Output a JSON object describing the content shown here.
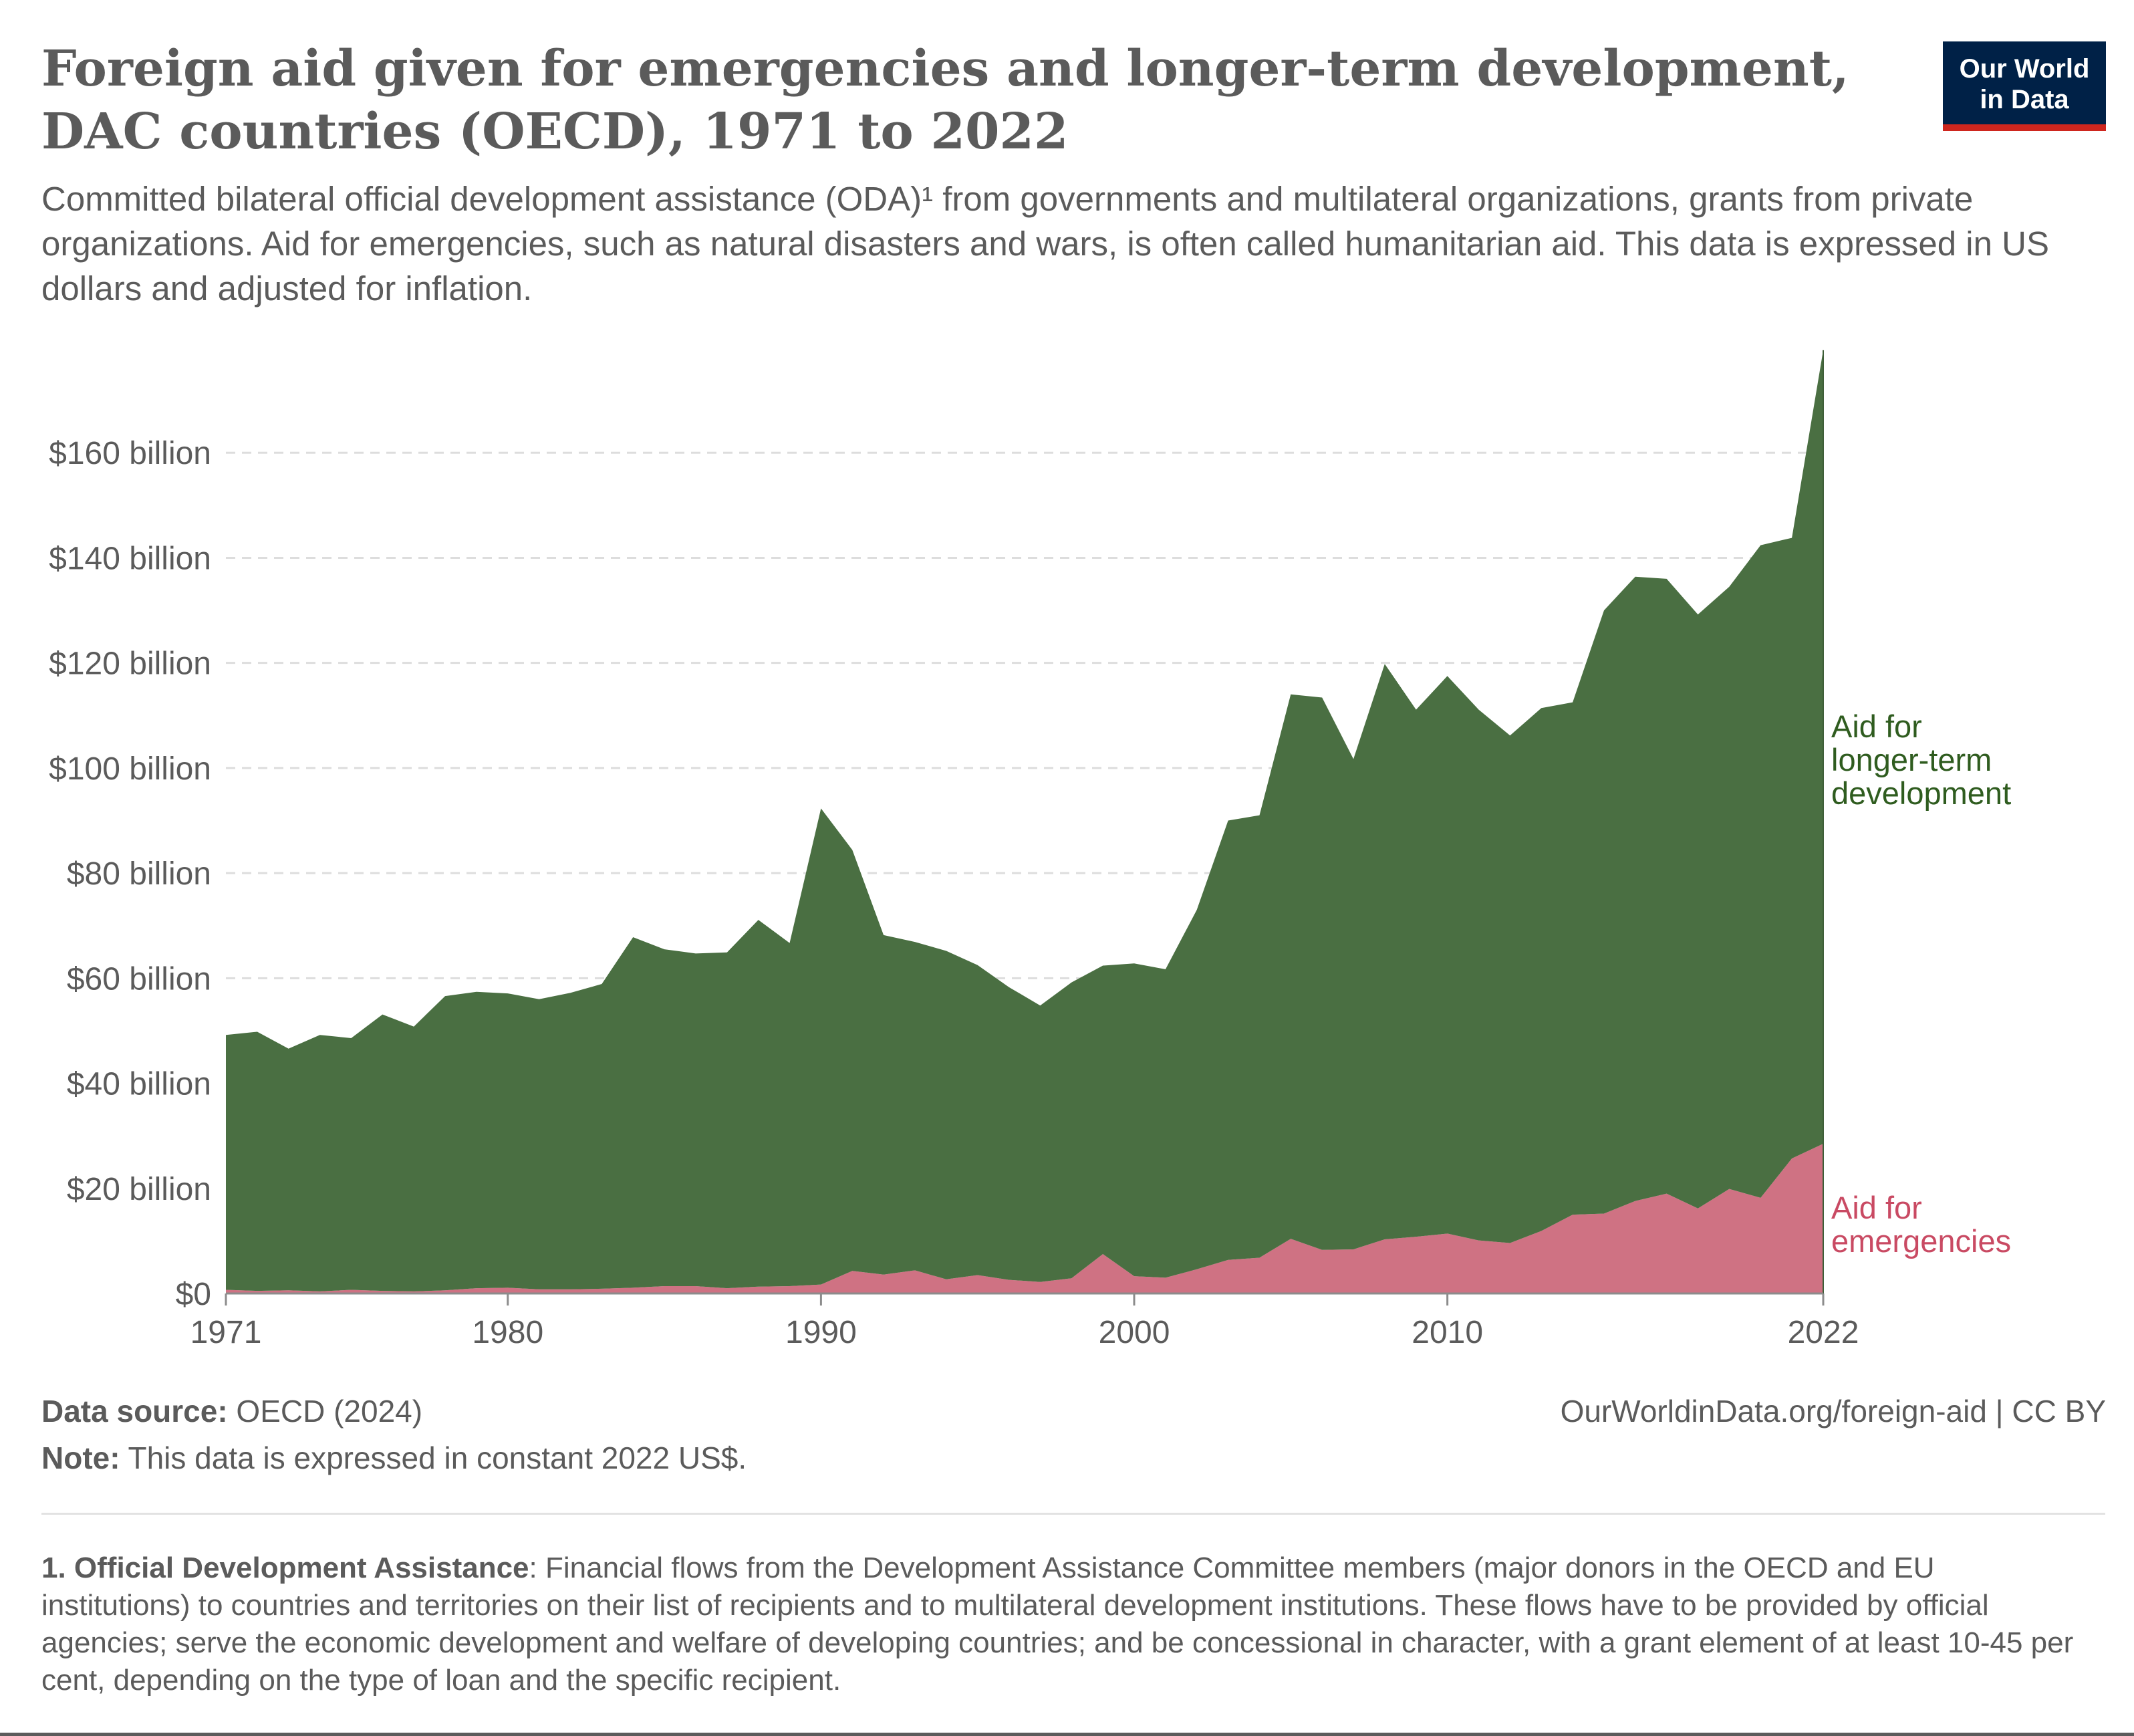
{
  "title": "Foreign aid given for emergencies and longer-term development, DAC countries (OECD), 1971 to 2022",
  "subtitle": "Committed bilateral official development assistance (ODA)¹ from governments and multilateral organizations, grants from private organizations. Aid for emergencies, such as natural disasters and wars, is often called humanitarian aid. This data is expressed in US dollars and adjusted for inflation.",
  "logo": {
    "line1": "Our World",
    "line2": "in Data"
  },
  "footer": {
    "source_label": "Data source:",
    "source_value": " OECD (2024)",
    "note_label": "Note:",
    "note_value": " This data is expressed in constant 2022 US$.",
    "url": "OurWorldinData.org/foreign-aid | CC BY"
  },
  "footnote": {
    "label": "1. Official Development Assistance",
    "text": ": Financial flows from the Development Assistance Committee members (major donors in the OECD and EU institutions) to countries and territories on their list of recipients and to multilateral development institutions. These flows have to be provided by official agencies; serve the economic development and welfare of developing countries; and be concessional in character, with a grant element of at least 10-45 per cent, depending on the type of loan and the specific recipient."
  },
  "colors": {
    "development": "#4a6f42",
    "emergencies": "#cf7283",
    "development_label": "#2f5c1f",
    "emergencies_label": "#c94a63",
    "grid": "#dddddd",
    "axis_text": "#5b5b5b"
  },
  "chart_data": {
    "type": "area",
    "stacked": true,
    "x": [
      1971,
      1972,
      1973,
      1974,
      1975,
      1976,
      1977,
      1978,
      1979,
      1980,
      1981,
      1982,
      1983,
      1984,
      1985,
      1986,
      1987,
      1988,
      1989,
      1990,
      1991,
      1992,
      1993,
      1994,
      1995,
      1996,
      1997,
      1998,
      1999,
      2000,
      2001,
      2002,
      2003,
      2004,
      2005,
      2006,
      2007,
      2008,
      2009,
      2010,
      2011,
      2012,
      2013,
      2014,
      2015,
      2016,
      2017,
      2018,
      2019,
      2020,
      2021,
      2022
    ],
    "series": [
      {
        "name": "Aid for emergencies",
        "values": [
          0.7,
          0.5,
          0.6,
          0.4,
          0.7,
          0.5,
          0.4,
          0.6,
          1.0,
          1.1,
          0.8,
          0.8,
          0.9,
          1.1,
          1.4,
          1.4,
          1.0,
          1.3,
          1.4,
          1.7,
          4.3,
          3.6,
          4.4,
          2.7,
          3.5,
          2.6,
          2.2,
          2.9,
          7.5,
          3.3,
          3.0,
          4.6,
          6.4,
          6.8,
          10.4,
          8.3,
          8.4,
          10.3,
          10.8,
          11.4,
          10.1,
          9.6,
          11.9,
          15.0,
          15.2,
          17.6,
          19.0,
          16.2,
          19.9,
          18.2,
          25.7,
          28.5
        ]
      },
      {
        "name": "Aid for longer-term development",
        "values": [
          48.5,
          49.3,
          46.0,
          48.8,
          47.9,
          52.6,
          50.4,
          56.0,
          56.4,
          56.0,
          55.2,
          56.4,
          58.0,
          66.7,
          64.1,
          63.3,
          63.9,
          69.8,
          65.3,
          90.6,
          80.1,
          64.6,
          62.5,
          62.5,
          59.0,
          55.7,
          52.6,
          56.3,
          54.9,
          59.5,
          58.7,
          68.4,
          83.6,
          84.2,
          103.6,
          105.1,
          93.3,
          109.5,
          100.3,
          106.1,
          101.0,
          96.6,
          99.5,
          97.5,
          114.8,
          118.8,
          117.0,
          113.0,
          114.6,
          124.2,
          118.1,
          151.0
        ]
      }
    ],
    "ylim": [
      0,
      180
    ],
    "y_ticks": [
      0,
      20,
      40,
      60,
      80,
      100,
      120,
      140,
      160
    ],
    "y_tick_labels": [
      "$0",
      "$20 billion",
      "$40 billion",
      "$60 billion",
      "$80 billion",
      "$100 billion",
      "$120 billion",
      "$140 billion",
      "$160 billion"
    ],
    "x_ticks": [
      1971,
      1980,
      1990,
      2000,
      2010,
      2022
    ],
    "x_tick_labels": [
      "1971",
      "1980",
      "1990",
      "2000",
      "2010",
      "2022"
    ],
    "series_labels": [
      {
        "series": "Aid for longer-term development",
        "lines": [
          "Aid for",
          "longer-term",
          "development"
        ]
      },
      {
        "series": "Aid for emergencies",
        "lines": [
          "Aid for",
          "emergencies"
        ]
      }
    ],
    "grid": "horizontal-dashed",
    "legend": "right-inline"
  }
}
